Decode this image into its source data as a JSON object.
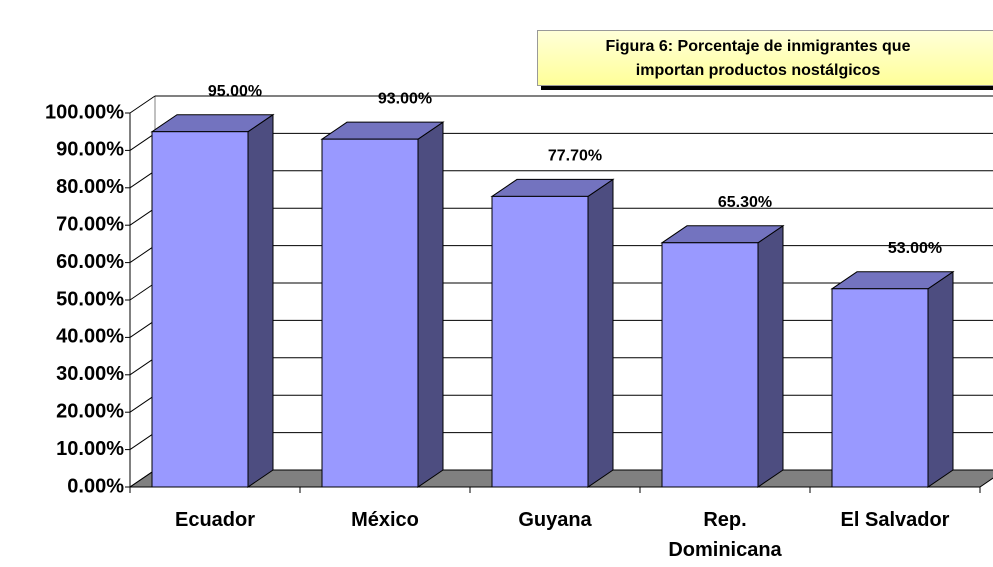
{
  "chart_data": {
    "type": "bar3d",
    "title": [
      "Figura 6: Porcentaje de inmigrantes que",
      "importan productos nostálgicos"
    ],
    "categories": [
      "Ecuador",
      "México",
      "Guyana",
      "Rep. Dominicana",
      "El Salvador"
    ],
    "values": [
      95,
      93,
      77.7,
      65.3,
      53
    ],
    "value_labels": [
      "95.00%",
      "93.00%",
      "77.70%",
      "65.30%",
      "53.00%"
    ],
    "color": "#9999ff",
    "ylim": [
      0,
      100
    ],
    "yticks": [
      {
        "value": 0,
        "label": "0.00%"
      },
      {
        "value": 10,
        "label": "10.00%"
      },
      {
        "value": 20,
        "label": "20.00%"
      },
      {
        "value": 30,
        "label": "30.00%"
      },
      {
        "value": 40,
        "label": "40.00%"
      },
      {
        "value": 50,
        "label": "50.00%"
      },
      {
        "value": 60,
        "label": "60.00%"
      },
      {
        "value": 70,
        "label": "70.00%"
      },
      {
        "value": 80,
        "label": "80.00%"
      },
      {
        "value": 90,
        "label": "90.00%"
      },
      {
        "value": 100,
        "label": "100.00%"
      }
    ],
    "grid": true
  }
}
